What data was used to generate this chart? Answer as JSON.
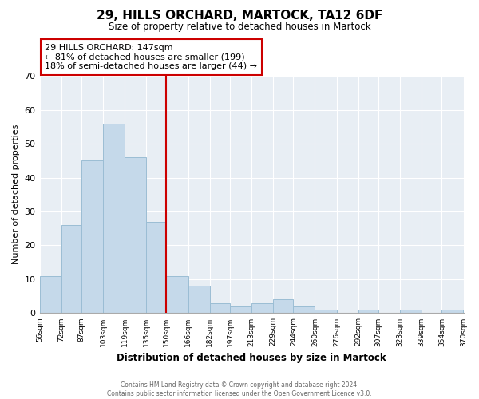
{
  "title": "29, HILLS ORCHARD, MARTOCK, TA12 6DF",
  "subtitle": "Size of property relative to detached houses in Martock",
  "xlabel": "Distribution of detached houses by size in Martock",
  "ylabel": "Number of detached properties",
  "bar_color": "#c5d9ea",
  "bar_edge_color": "#9bbdd4",
  "marker_line_color": "#cc0000",
  "bin_edges": [
    56,
    72,
    87,
    103,
    119,
    135,
    150,
    166,
    182,
    197,
    213,
    229,
    244,
    260,
    276,
    292,
    307,
    323,
    339,
    354,
    370
  ],
  "bin_labels": [
    "56sqm",
    "72sqm",
    "87sqm",
    "103sqm",
    "119sqm",
    "135sqm",
    "150sqm",
    "166sqm",
    "182sqm",
    "197sqm",
    "213sqm",
    "229sqm",
    "244sqm",
    "260sqm",
    "276sqm",
    "292sqm",
    "307sqm",
    "323sqm",
    "339sqm",
    "354sqm",
    "370sqm"
  ],
  "counts": [
    11,
    26,
    45,
    56,
    46,
    27,
    11,
    8,
    3,
    2,
    3,
    4,
    2,
    1,
    0,
    1,
    0,
    1,
    0,
    1
  ],
  "ylim": [
    0,
    70
  ],
  "yticks": [
    0,
    10,
    20,
    30,
    40,
    50,
    60,
    70
  ],
  "annotation_title": "29 HILLS ORCHARD: 147sqm",
  "annotation_line1": "← 81% of detached houses are smaller (199)",
  "annotation_line2": "18% of semi-detached houses are larger (44) →",
  "annotation_box_color": "#ffffff",
  "annotation_box_edge": "#cc0000",
  "footer_line1": "Contains HM Land Registry data © Crown copyright and database right 2024.",
  "footer_line2": "Contains public sector information licensed under the Open Government Licence v3.0.",
  "plot_bg_color": "#e8eef4",
  "fig_bg_color": "#ffffff",
  "grid_color": "#ffffff"
}
